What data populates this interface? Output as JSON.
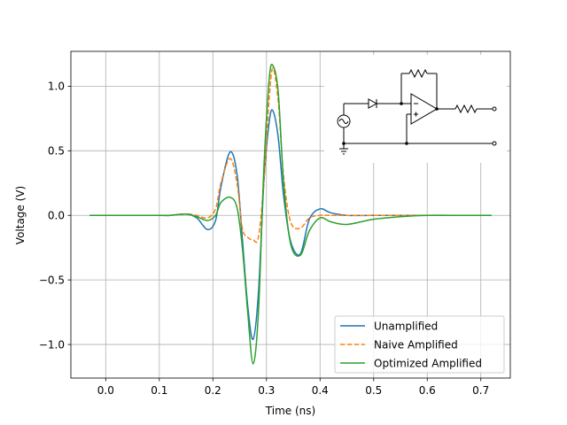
{
  "chart_data": {
    "type": "line",
    "title": "",
    "xlabel": "Time (ns)",
    "ylabel": "Voltage (V)",
    "xlim": [
      -0.065,
      0.755
    ],
    "ylim": [
      -1.26,
      1.27
    ],
    "xticks": [
      0.0,
      0.1,
      0.2,
      0.3,
      0.4,
      0.5,
      0.6,
      0.7
    ],
    "xtick_labels": [
      "0.0",
      "0.1",
      "0.2",
      "0.3",
      "0.4",
      "0.5",
      "0.6",
      "0.7"
    ],
    "yticks": [
      -1.0,
      -0.5,
      0.0,
      0.5,
      1.0
    ],
    "ytick_labels": [
      "−1.0",
      "−0.5",
      "0.0",
      "0.5",
      "1.0"
    ],
    "grid": true,
    "legend_position": "lower-right",
    "x": [
      -0.03,
      0.1,
      0.12,
      0.15,
      0.17,
      0.19,
      0.205,
      0.215,
      0.232,
      0.245,
      0.255,
      0.265,
      0.275,
      0.285,
      0.295,
      0.305,
      0.312,
      0.322,
      0.332,
      0.345,
      0.363,
      0.38,
      0.4,
      0.42,
      0.45,
      0.5,
      0.55,
      0.6,
      0.65,
      0.72
    ],
    "series": [
      {
        "name": "Unamplified",
        "color": "#1f77b4",
        "dash": "solid",
        "values": [
          0.0,
          0.0,
          0.0,
          0.01,
          -0.02,
          -0.11,
          -0.04,
          0.22,
          0.49,
          0.32,
          -0.18,
          -0.7,
          -0.96,
          -0.6,
          0.25,
          0.72,
          0.81,
          0.6,
          0.15,
          -0.2,
          -0.3,
          -0.03,
          0.05,
          0.02,
          0.0,
          0.0,
          0.0,
          0.0,
          0.0,
          0.0
        ]
      },
      {
        "name": "Naive Amplified",
        "color": "#ff7f0e",
        "dash": "dashed",
        "values": [
          0.0,
          0.0,
          0.0,
          0.01,
          0.0,
          -0.02,
          0.05,
          0.25,
          0.44,
          0.25,
          -0.1,
          -0.17,
          -0.19,
          -0.17,
          0.25,
          0.9,
          1.14,
          0.88,
          0.3,
          -0.05,
          -0.1,
          -0.02,
          0.0,
          0.0,
          0.0,
          0.0,
          0.0,
          0.0,
          0.0,
          0.0
        ]
      },
      {
        "name": "Optimized Amplified",
        "color": "#2ca02c",
        "dash": "solid",
        "values": [
          0.0,
          0.0,
          0.0,
          0.01,
          -0.01,
          -0.04,
          0.0,
          0.1,
          0.14,
          0.06,
          -0.25,
          -0.75,
          -1.15,
          -0.75,
          0.35,
          1.05,
          1.16,
          0.95,
          0.25,
          -0.22,
          -0.31,
          -0.12,
          -0.02,
          -0.05,
          -0.07,
          -0.03,
          -0.01,
          0.0,
          0.0,
          0.0
        ]
      }
    ]
  }
}
